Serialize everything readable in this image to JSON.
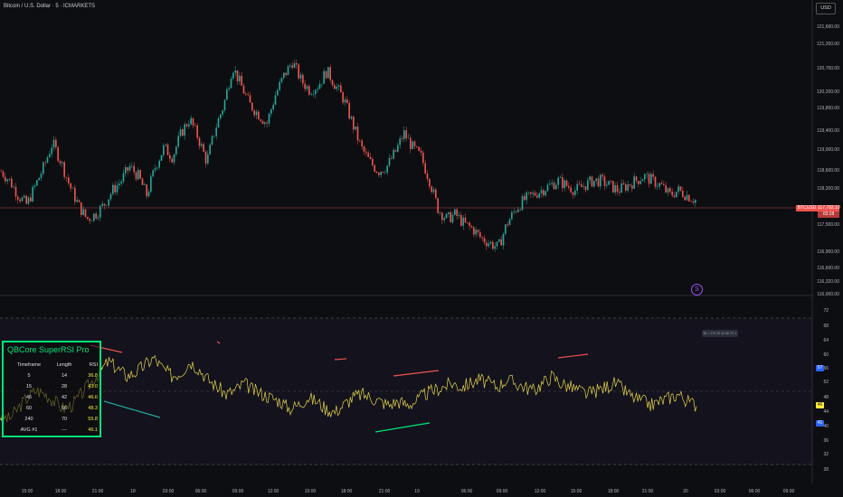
{
  "chart": {
    "title": "Bitcoin / U.S. Dollar · 5 · ICMARKETS",
    "currency_button": "USD",
    "price_axis": [
      "121,600.00",
      "121,200.00",
      "120,700.00",
      "120,200.00",
      "119,800.00",
      "119,400.00",
      "119,000.00",
      "118,600.00",
      "118,200.00",
      "117,800.00",
      "117,500.00",
      "116,900.00",
      "116,600.00",
      "116,320.00",
      "116,000.00"
    ],
    "current_price": {
      "symbol": "BTCUSD",
      "price": "117,782.10",
      "countdown": "03:28"
    },
    "osc_axis": [
      "72",
      "68",
      "64",
      "60",
      "56",
      "52",
      "48",
      "44",
      "40",
      "36",
      "32",
      "28"
    ],
    "osc_tags": {
      "rsi_blue_top": "57",
      "rsi_yellow": "46",
      "rsi_blue_bottom": "41"
    },
    "time_axis": [
      "15:00",
      "18:00",
      "21:00",
      "18",
      "03:00",
      "06:00",
      "09:00",
      "12:00",
      "15:00",
      "18:00",
      "21:00",
      "19",
      "06:00",
      "09:00",
      "12:00",
      "15:00",
      "18:00",
      "21:00",
      "20",
      "03:00",
      "06:00",
      "09:00"
    ],
    "tooltip": "48 = 170 25 42 56 70 ↴",
    "indicator_symbol": "S",
    "colors": {
      "up": "#26a69a",
      "down": "#ef5350",
      "rsi": "#e6d44a",
      "accent": "#00e676",
      "price_line": "#ef5350",
      "osc_bg": "#1a1628"
    }
  },
  "chart_data": {
    "type": "line",
    "series": [
      {
        "values": [
          118600,
          118400,
          118100,
          117900,
          118300,
          118700,
          119200,
          118800,
          118300,
          117900,
          117600,
          117700,
          117900,
          118200,
          118400,
          118700,
          118500,
          118100,
          118700,
          119100,
          118900,
          119400,
          119700,
          119300,
          118800,
          119500,
          120000,
          120800,
          120400,
          120000,
          119800,
          119600,
          120200,
          120600,
          120900,
          120500,
          120300,
          120400,
          120700,
          120400,
          120100,
          119600,
          119100,
          118800,
          118600,
          118700,
          119000,
          119400,
          119100,
          118900,
          118400,
          117800,
          117600,
          117700,
          117500,
          117400,
          117200,
          117100,
          117000,
          117500,
          117800,
          118000,
          118100,
          118200,
          118300,
          118400,
          118300,
          118200,
          118300,
          118400,
          118400,
          118300,
          118200,
          118300,
          118400,
          118500,
          118400,
          118300,
          118100,
          118200,
          118100,
          118000
        ]
      },
      {
        "values": [
          43,
          42,
          45,
          48,
          50,
          49,
          47,
          45,
          46,
          49,
          52,
          55,
          58,
          56,
          54,
          55,
          57,
          59,
          56,
          54,
          55,
          58,
          56,
          53,
          51,
          49,
          50,
          52,
          50,
          49,
          48,
          47,
          45,
          46,
          48,
          47,
          45,
          44,
          46,
          48,
          49,
          48,
          47,
          46,
          47,
          46,
          47,
          49,
          50,
          51,
          52,
          51,
          52,
          53,
          52,
          51,
          53,
          52,
          51,
          50,
          52,
          54,
          52,
          51,
          50,
          49,
          50,
          51,
          52,
          50,
          48,
          47,
          46,
          47,
          48,
          49,
          47,
          46
        ]
      }
    ]
  }
}
